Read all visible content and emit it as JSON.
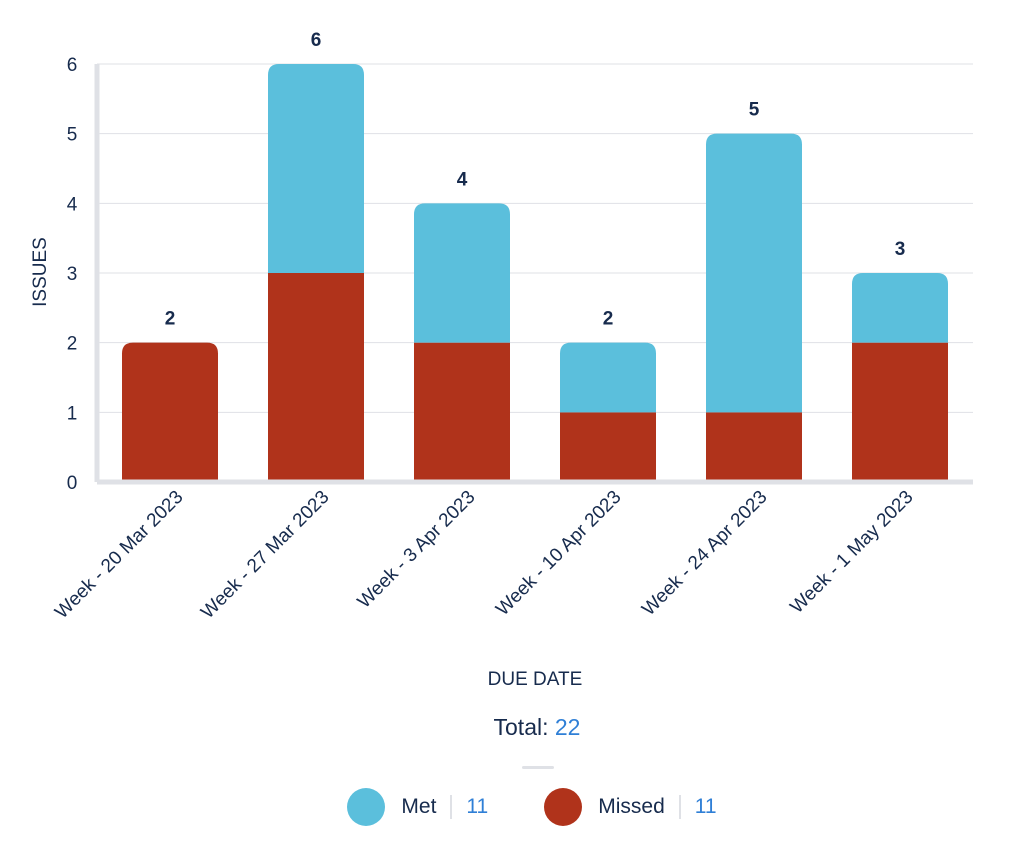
{
  "chart_data": {
    "type": "bar",
    "stacked": true,
    "categories": [
      "Week - 20 Mar 2023",
      "Week - 27 Mar 2023",
      "Week - 3 Apr 2023",
      "Week - 10 Apr 2023",
      "Week - 24 Apr 2023",
      "Week - 1 May 2023"
    ],
    "series": [
      {
        "name": "Missed",
        "color": "#b0331b",
        "values": [
          2,
          3,
          2,
          1,
          1,
          2
        ]
      },
      {
        "name": "Met",
        "color": "#5bbfdc",
        "values": [
          0,
          3,
          2,
          1,
          4,
          1
        ]
      }
    ],
    "totals": [
      2,
      6,
      4,
      2,
      5,
      3
    ],
    "xlabel": "DUE DATE",
    "ylabel": "ISSUES",
    "ylim": [
      0,
      6
    ],
    "yticks": [
      0,
      1,
      2,
      3,
      4,
      5,
      6
    ],
    "grid": true
  },
  "summary": {
    "label": "Total:",
    "value": "22"
  },
  "legend": [
    {
      "name": "Met",
      "count": "11",
      "color": "#5bbfdc"
    },
    {
      "name": "Missed",
      "count": "11",
      "color": "#b0331b"
    }
  ]
}
